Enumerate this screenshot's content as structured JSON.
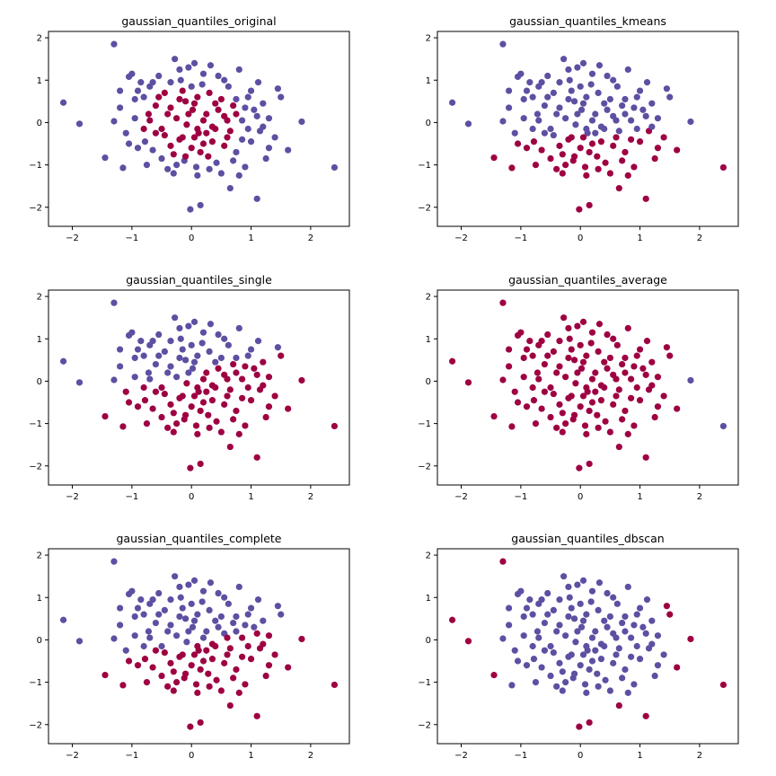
{
  "chart_data": [
    {
      "type": "scatter",
      "title": "gaussian_quantiles_original",
      "xlim": [
        -2.4,
        2.65
      ],
      "ylim": [
        -2.45,
        2.15
      ],
      "x_ticks": [
        "−2",
        "−1",
        "0",
        "1",
        "2"
      ],
      "y_ticks": [
        "−2",
        "−1",
        "0",
        "1",
        "2"
      ],
      "colors": {
        "cluster_a": "#5e4fa2",
        "cluster_b": "#9e0142"
      },
      "labeling": "radius"
    },
    {
      "type": "scatter",
      "title": "gaussian_quantiles_kmeans",
      "xlim": [
        -2.4,
        2.65
      ],
      "ylim": [
        -2.45,
        2.15
      ],
      "x_ticks": [
        "−2",
        "−1",
        "0",
        "1",
        "2"
      ],
      "y_ticks": [
        "−2",
        "−1",
        "0",
        "1",
        "2"
      ],
      "colors": {
        "cluster_a": "#5e4fa2",
        "cluster_b": "#9e0142"
      },
      "labeling": "kmeans"
    },
    {
      "type": "scatter",
      "title": "gaussian_quantiles_single",
      "xlim": [
        -2.4,
        2.65
      ],
      "ylim": [
        -2.45,
        2.15
      ],
      "x_ticks": [
        "−2",
        "−1",
        "0",
        "1",
        "2"
      ],
      "y_ticks": [
        "−2",
        "−1",
        "0",
        "1",
        "2"
      ],
      "colors": {
        "cluster_a": "#5e4fa2",
        "cluster_b": "#9e0142"
      },
      "labeling": "single"
    },
    {
      "type": "scatter",
      "title": "gaussian_quantiles_average",
      "xlim": [
        -2.4,
        2.65
      ],
      "ylim": [
        -2.45,
        2.15
      ],
      "x_ticks": [
        "−2",
        "−1",
        "0",
        "1",
        "2"
      ],
      "y_ticks": [
        "−2",
        "−1",
        "0",
        "1",
        "2"
      ],
      "colors": {
        "cluster_a": "#5e4fa2",
        "cluster_b": "#9e0142"
      },
      "labeling": "average"
    },
    {
      "type": "scatter",
      "title": "gaussian_quantiles_complete",
      "xlim": [
        -2.4,
        2.65
      ],
      "ylim": [
        -2.45,
        2.15
      ],
      "x_ticks": [
        "−2",
        "−1",
        "0",
        "1",
        "2"
      ],
      "y_ticks": [
        "−2",
        "−1",
        "0",
        "1",
        "2"
      ],
      "colors": {
        "cluster_a": "#5e4fa2",
        "cluster_b": "#9e0142"
      },
      "labeling": "complete"
    },
    {
      "type": "scatter",
      "title": "gaussian_quantiles_dbscan",
      "xlim": [
        -2.4,
        2.65
      ],
      "ylim": [
        -2.45,
        2.15
      ],
      "x_ticks": [
        "−2",
        "−1",
        "0",
        "1",
        "2"
      ],
      "y_ticks": [
        "−2",
        "−1",
        "0",
        "1",
        "2"
      ],
      "colors": {
        "cluster_a": "#5e4fa2",
        "cluster_b": "#9e0142"
      },
      "labeling": "dbscan"
    }
  ],
  "points": [
    [
      -2.15,
      0.47
    ],
    [
      -1.88,
      -0.03
    ],
    [
      -1.45,
      -0.83
    ],
    [
      -1.3,
      1.85
    ],
    [
      -1.3,
      0.03
    ],
    [
      -1.2,
      0.75
    ],
    [
      -1.15,
      -1.07
    ],
    [
      -1.05,
      1.08
    ],
    [
      -1.0,
      1.15
    ],
    [
      -0.95,
      0.55
    ],
    [
      -0.9,
      -0.6
    ],
    [
      -0.85,
      0.95
    ],
    [
      -0.8,
      0.6
    ],
    [
      -0.78,
      -0.45
    ],
    [
      -0.72,
      0.2
    ],
    [
      -0.7,
      0.85
    ],
    [
      -0.65,
      -0.65
    ],
    [
      -0.6,
      0.4
    ],
    [
      -0.55,
      1.1
    ],
    [
      -0.5,
      -0.15
    ],
    [
      -0.45,
      0.7
    ],
    [
      -0.4,
      -1.1
    ],
    [
      -0.35,
      0.35
    ],
    [
      -0.3,
      -0.75
    ],
    [
      -0.28,
      1.5
    ],
    [
      -0.25,
      0.1
    ],
    [
      -0.2,
      -0.4
    ],
    [
      -0.18,
      1.0
    ],
    [
      -0.15,
      0.75
    ],
    [
      -0.12,
      -0.9
    ],
    [
      -0.1,
      0.5
    ],
    [
      -0.08,
      -0.05
    ],
    [
      -0.05,
      1.3
    ],
    [
      -0.02,
      -2.05
    ],
    [
      0.0,
      -0.6
    ],
    [
      0.02,
      0.3
    ],
    [
      0.05,
      1.4
    ],
    [
      0.08,
      -1.05
    ],
    [
      0.1,
      0.6
    ],
    [
      0.12,
      -0.25
    ],
    [
      0.15,
      -1.95
    ],
    [
      0.18,
      0.9
    ],
    [
      0.2,
      -0.5
    ],
    [
      0.25,
      0.2
    ],
    [
      0.28,
      -0.8
    ],
    [
      0.32,
      1.35
    ],
    [
      0.35,
      -0.1
    ],
    [
      0.4,
      0.45
    ],
    [
      0.42,
      -0.95
    ],
    [
      0.45,
      1.1
    ],
    [
      0.5,
      -1.2
    ],
    [
      0.55,
      0.15
    ],
    [
      0.6,
      -0.35
    ],
    [
      0.62,
      0.85
    ],
    [
      0.65,
      -1.55
    ],
    [
      0.7,
      0.4
    ],
    [
      0.75,
      -0.7
    ],
    [
      0.8,
      1.25
    ],
    [
      0.85,
      0.05
    ],
    [
      0.9,
      -1.05
    ],
    [
      0.95,
      0.6
    ],
    [
      1.0,
      -0.45
    ],
    [
      1.05,
      0.3
    ],
    [
      1.1,
      -1.8
    ],
    [
      1.12,
      0.95
    ],
    [
      1.15,
      -0.2
    ],
    [
      1.2,
      0.45
    ],
    [
      1.25,
      -0.85
    ],
    [
      1.3,
      0.1
    ],
    [
      1.4,
      -0.35
    ],
    [
      1.45,
      0.8
    ],
    [
      1.5,
      0.6
    ],
    [
      1.62,
      -0.65
    ],
    [
      1.85,
      0.02
    ],
    [
      2.4,
      -1.06
    ],
    [
      -0.7,
      0.05
    ],
    [
      -0.45,
      -0.3
    ],
    [
      -0.2,
      0.55
    ],
    [
      0.05,
      -0.35
    ],
    [
      0.3,
      0.7
    ],
    [
      0.55,
      -0.55
    ],
    [
      0.2,
      0.05
    ],
    [
      -0.1,
      -0.8
    ],
    [
      0.45,
      0.3
    ],
    [
      0.75,
      0.2
    ],
    [
      -0.35,
      -0.55
    ],
    [
      0.1,
      -0.15
    ],
    [
      0.65,
      -0.2
    ],
    [
      -0.6,
      -0.25
    ],
    [
      0.0,
      0.85
    ],
    [
      -0.25,
      -1.0
    ],
    [
      0.35,
      -0.45
    ],
    [
      0.9,
      0.35
    ],
    [
      -0.05,
      0.2
    ],
    [
      0.15,
      -0.7
    ],
    [
      0.5,
      0.55
    ],
    [
      -0.8,
      -0.15
    ],
    [
      0.25,
      -0.25
    ],
    [
      -0.15,
      -0.35
    ],
    [
      0.6,
      0.05
    ],
    [
      0.85,
      -0.4
    ],
    [
      -0.4,
      0.2
    ],
    [
      0.05,
      0.45
    ],
    [
      0.4,
      -0.15
    ],
    [
      -0.55,
      0.6
    ],
    [
      -0.95,
      0.1
    ],
    [
      -1.05,
      -0.5
    ],
    [
      -1.2,
      0.35
    ],
    [
      1.0,
      0.75
    ],
    [
      1.3,
      -0.6
    ],
    [
      0.7,
      -0.9
    ],
    [
      -0.3,
      -1.2
    ],
    [
      0.1,
      -1.25
    ],
    [
      -0.75,
      -1.0
    ],
    [
      0.95,
      -0.15
    ],
    [
      1.1,
      0.15
    ],
    [
      -0.65,
      0.95
    ],
    [
      0.2,
      1.15
    ],
    [
      -0.35,
      0.95
    ],
    [
      0.55,
      1.0
    ],
    [
      0.75,
      0.55
    ],
    [
      -0.9,
      0.75
    ],
    [
      1.2,
      -0.1
    ],
    [
      -1.1,
      -0.25
    ],
    [
      0.3,
      -1.1
    ],
    [
      -0.5,
      -0.85
    ],
    [
      0.8,
      -1.25
    ],
    [
      -0.2,
      1.25
    ]
  ]
}
